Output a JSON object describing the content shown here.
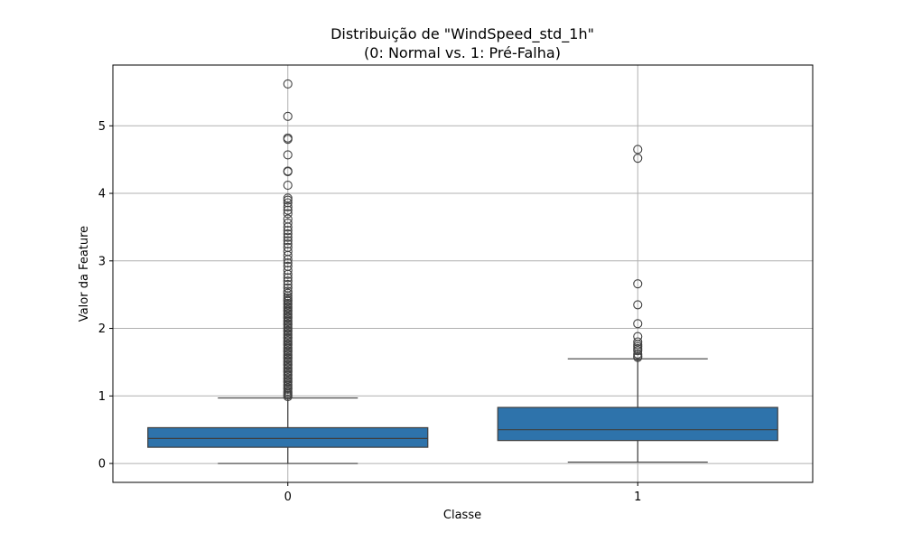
{
  "chart_data": {
    "type": "box",
    "title_lines": [
      "Distribuição de \"WindSpeed_std_1h\"",
      "(0: Normal vs. 1: Pré-Falha)"
    ],
    "xlabel": "Classe",
    "ylabel": "Valor da Feature",
    "categories": [
      "0",
      "1"
    ],
    "yticks": [
      "0",
      "1",
      "2",
      "3",
      "4",
      "5"
    ],
    "ylim": [
      -0.28,
      5.9
    ],
    "grid": true,
    "box_color": "#2e73ab",
    "boxes": [
      {
        "category": "0",
        "whisker_low": 0.0,
        "q1": 0.24,
        "median": 0.37,
        "q3": 0.53,
        "whisker_high": 0.97,
        "outliers": [
          5.62,
          5.14,
          4.82,
          4.8,
          4.57,
          4.33,
          4.32,
          4.12,
          3.93,
          3.9,
          3.86,
          3.8,
          3.75,
          3.7,
          3.62,
          3.56,
          3.5,
          3.45,
          3.4,
          3.35,
          3.3,
          3.25,
          3.2,
          3.14,
          3.08,
          3.02,
          2.97,
          2.92,
          2.86,
          2.8,
          2.75,
          2.7,
          2.65,
          2.6,
          2.55,
          2.52,
          2.48,
          2.45,
          2.42,
          2.4,
          2.37,
          2.35,
          2.32,
          2.3,
          2.27,
          2.25,
          2.22,
          2.2,
          2.17,
          2.15,
          2.12,
          2.1,
          2.07,
          2.05,
          2.02,
          2.0,
          1.97,
          1.95,
          1.92,
          1.9,
          1.87,
          1.85,
          1.82,
          1.8,
          1.77,
          1.75,
          1.72,
          1.7,
          1.67,
          1.65,
          1.62,
          1.6,
          1.57,
          1.55,
          1.52,
          1.5,
          1.47,
          1.45,
          1.42,
          1.4,
          1.37,
          1.35,
          1.32,
          1.3,
          1.27,
          1.25,
          1.22,
          1.2,
          1.17,
          1.15,
          1.12,
          1.1,
          1.07,
          1.05,
          1.03,
          1.01,
          0.99
        ]
      },
      {
        "category": "1",
        "whisker_low": 0.02,
        "q1": 0.34,
        "median": 0.5,
        "q3": 0.83,
        "whisker_high": 1.55,
        "outliers": [
          4.65,
          4.52,
          2.66,
          2.35,
          2.07,
          1.88,
          1.8,
          1.76,
          1.73,
          1.7,
          1.67,
          1.62,
          1.59,
          1.57
        ]
      }
    ]
  }
}
